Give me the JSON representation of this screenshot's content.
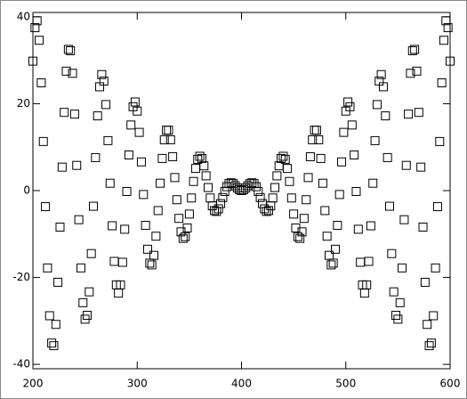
{
  "chart_data": {
    "type": "scatter",
    "marker": "square",
    "color": "#000000",
    "xlim": [
      200,
      600
    ],
    "ylim": [
      -41,
      41
    ],
    "xticks": [
      200,
      300,
      400,
      500,
      600
    ],
    "yticks": [
      -40,
      -20,
      0,
      20,
      40
    ],
    "x": [
      200,
      202,
      204,
      206,
      208,
      210,
      212,
      214,
      216,
      218,
      220,
      222,
      224,
      226,
      228,
      230,
      232,
      234,
      236,
      238,
      240,
      242,
      244,
      246,
      248,
      250,
      252,
      254,
      256,
      258,
      260,
      262,
      264,
      266,
      268,
      270,
      272,
      274,
      276,
      278,
      280,
      282,
      284,
      286,
      288,
      290,
      292,
      294,
      296,
      298,
      300,
      302,
      304,
      306,
      308,
      310,
      312,
      314,
      316,
      318,
      320,
      322,
      324,
      326,
      328,
      330,
      332,
      334,
      336,
      338,
      340,
      342,
      344,
      346,
      348,
      350,
      352,
      354,
      356,
      358,
      360,
      362,
      364,
      366,
      368,
      370,
      372,
      374,
      376,
      378,
      380,
      382,
      384,
      386,
      388,
      390,
      392,
      394,
      396,
      398,
      400,
      402,
      404,
      406,
      408,
      410,
      412,
      414,
      416,
      418,
      420,
      422,
      424,
      426,
      428,
      430,
      432,
      434,
      436,
      438,
      440,
      442,
      444,
      446,
      448,
      450,
      452,
      454,
      456,
      458,
      460,
      462,
      464,
      466,
      468,
      470,
      472,
      474,
      476,
      478,
      480,
      482,
      484,
      486,
      488,
      490,
      492,
      494,
      496,
      498,
      500,
      502,
      504,
      506,
      508,
      510,
      512,
      514,
      516,
      518,
      520,
      522,
      524,
      526,
      528,
      530,
      532,
      534,
      536,
      538,
      540,
      542,
      544,
      546,
      548,
      550,
      552,
      554,
      556,
      558,
      560,
      562,
      564,
      566,
      568,
      570,
      572,
      574,
      576,
      578,
      580,
      582,
      584,
      586,
      588,
      590,
      592,
      594,
      596,
      598,
      600
    ],
    "values": [
      29.8,
      37.5,
      39.1,
      34.6,
      24.8,
      11.3,
      -3.7,
      -17.8,
      -28.8,
      -35.1,
      -35.7,
      -30.8,
      -21.1,
      -8.4,
      5.4,
      18.0,
      27.5,
      32.5,
      32.2,
      27.0,
      17.6,
      5.8,
      -6.7,
      -17.8,
      -25.8,
      -29.6,
      -28.7,
      -23.3,
      -14.5,
      -3.6,
      7.6,
      17.2,
      23.9,
      26.7,
      25.2,
      19.8,
      11.5,
      1.7,
      -8.1,
      -16.3,
      -21.7,
      -23.6,
      -21.7,
      -16.5,
      -8.9,
      -0.2,
      8.2,
      15.1,
      19.3,
      20.4,
      18.3,
      13.4,
      6.6,
      -0.9,
      -8.0,
      -13.5,
      -16.7,
      -17.1,
      -14.9,
      -10.5,
      -4.6,
      1.7,
      7.4,
      11.7,
      13.9,
      13.9,
      11.7,
      7.8,
      3.0,
      -2.1,
      -6.4,
      -9.5,
      -11.0,
      -10.6,
      -8.6,
      -5.4,
      -1.7,
      2.1,
      5.1,
      7.2,
      7.9,
      7.4,
      5.7,
      3.4,
      0.7,
      -1.7,
      -3.5,
      -4.6,
      -4.8,
      -4.2,
      -3.0,
      -1.6,
      -0.2,
      0.9,
      1.6,
      1.8,
      1.6,
      1.1,
      0.6,
      0.2,
      0.0,
      0.2,
      0.6,
      1.1,
      1.6,
      1.8,
      1.6,
      0.9,
      -0.2,
      -1.6,
      -3.0,
      -4.2,
      -4.8,
      -4.6,
      -3.5,
      -1.7,
      0.7,
      3.4,
      5.7,
      7.4,
      7.9,
      7.2,
      5.1,
      2.1,
      -1.7,
      -5.4,
      -8.6,
      -10.6,
      -11.0,
      -9.5,
      -6.4,
      -2.1,
      3.0,
      7.8,
      11.7,
      13.9,
      13.9,
      11.7,
      7.4,
      1.7,
      -4.6,
      -10.5,
      -14.9,
      -17.1,
      -16.7,
      -13.5,
      -8.0,
      -0.9,
      6.6,
      13.4,
      18.3,
      20.4,
      19.3,
      15.1,
      8.2,
      -0.2,
      -8.9,
      -16.5,
      -21.7,
      -23.6,
      -21.7,
      -16.3,
      -8.1,
      1.7,
      11.5,
      19.8,
      25.2,
      26.7,
      23.9,
      17.2,
      7.6,
      -3.6,
      -14.5,
      -23.3,
      -28.7,
      -29.6,
      -25.8,
      -17.8,
      -6.7,
      5.8,
      17.6,
      27.0,
      32.2,
      32.5,
      27.5,
      18.0,
      5.4,
      -8.4,
      -21.1,
      -30.8,
      -35.7,
      -35.1,
      -28.8,
      -17.8,
      -3.7,
      11.3,
      24.8,
      34.6,
      39.1,
      37.5,
      29.8
    ]
  }
}
